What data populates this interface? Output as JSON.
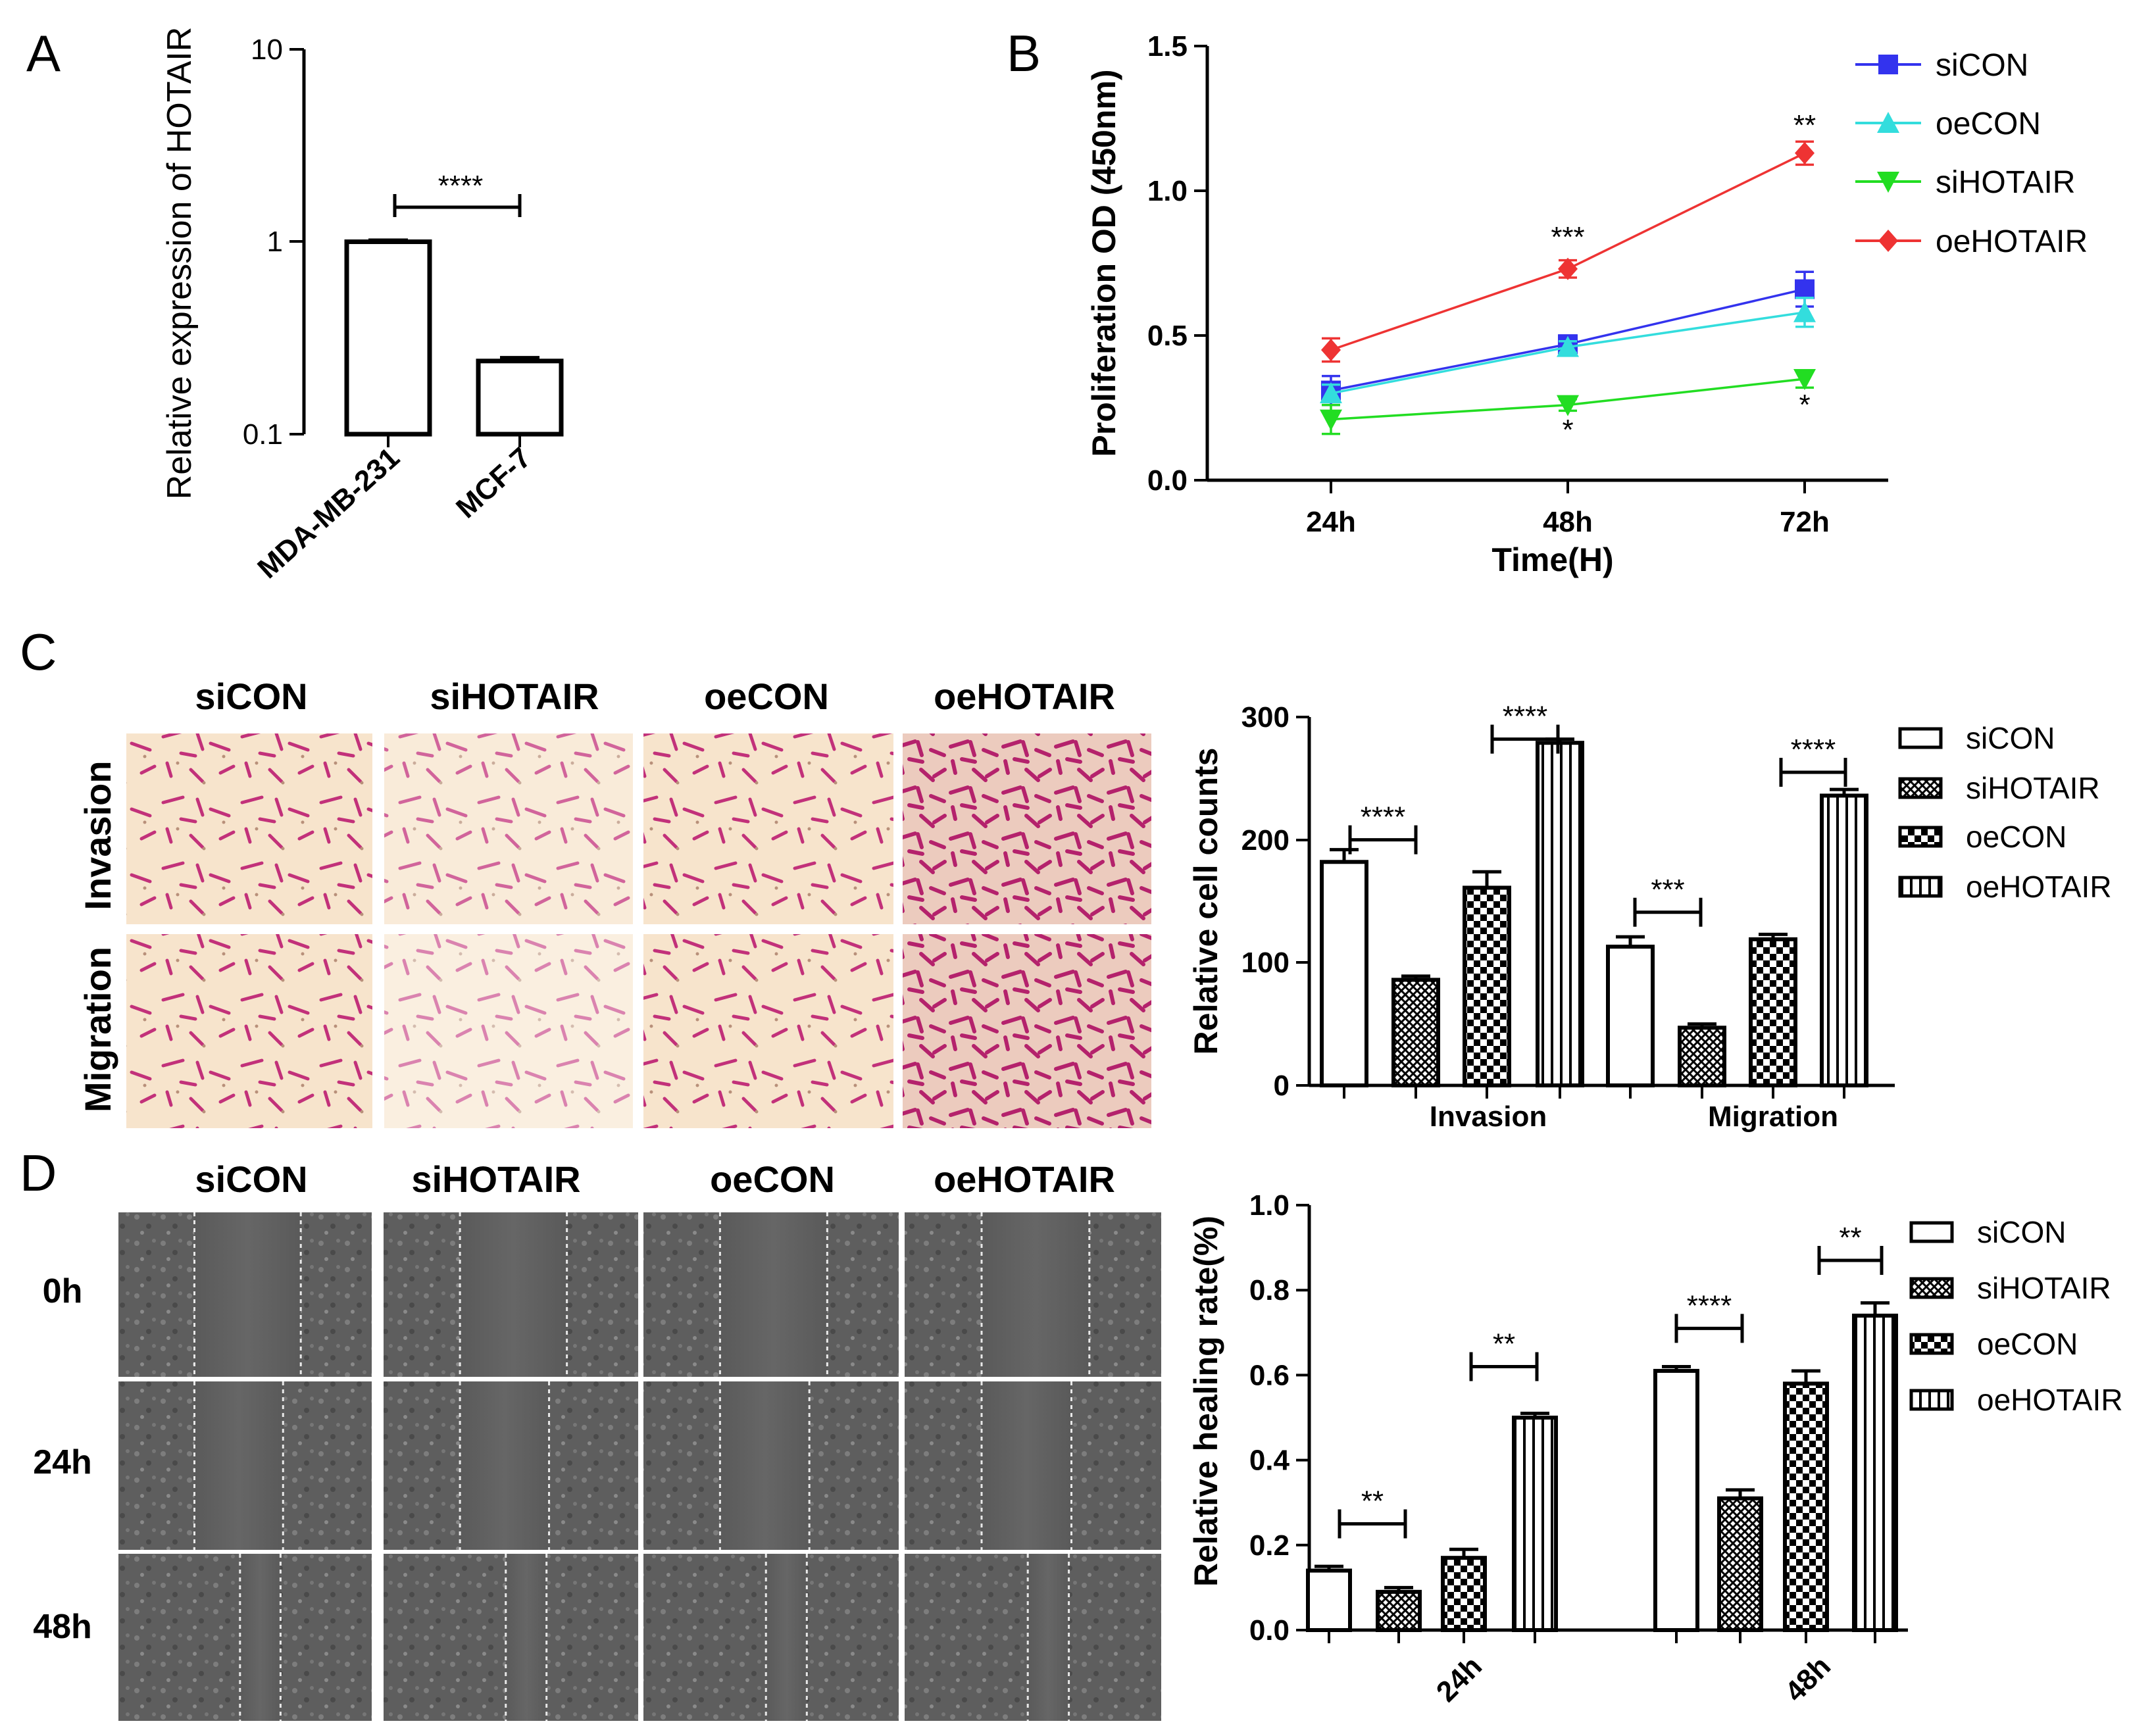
{
  "panels": {
    "A": {
      "letter": "A",
      "ylabel": "Relative expression of HOTAIR",
      "yticks": [
        "10",
        "1",
        "0.1"
      ],
      "significance": "****"
    },
    "B": {
      "letter": "B",
      "ylabel": "Proliferation OD (450nm)",
      "xlabel": "Time(H)",
      "yticks": [
        "1.5",
        "1.0",
        "0.5",
        "0.0"
      ],
      "stars": {
        "oe_72": "**",
        "oe_48": "***",
        "si_48": "*",
        "si_72": "*"
      }
    },
    "C": {
      "letter": "C",
      "col_headers": [
        "siCON",
        "siHOTAIR",
        "oeCON",
        "oeHOTAIR"
      ],
      "row_labels": [
        "Invasion",
        "Migration"
      ],
      "ylabel": "Relative cell counts",
      "yticks": [
        "300",
        "200",
        "100",
        "0"
      ],
      "legend": [
        "siCON",
        "siHOTAIR",
        "oeCON",
        "oeHOTAIR"
      ],
      "sig": [
        "****",
        "****",
        "***",
        "****"
      ]
    },
    "D": {
      "letter": "D",
      "col_headers": [
        "siCON",
        "siHOTAIR",
        "oeCON",
        "oeHOTAIR"
      ],
      "row_labels": [
        "0h",
        "24h",
        "48h"
      ],
      "ylabel": "Relative healing rate(%)",
      "yticks": [
        "1.0",
        "0.8",
        "0.6",
        "0.4",
        "0.2",
        "0.0"
      ],
      "legend": [
        "siCON",
        "siHOTAIR",
        "oeCON",
        "oeHOTAIR"
      ],
      "sig": [
        "**",
        "**",
        "****",
        "**"
      ]
    }
  },
  "chart_data": [
    {
      "panel": "A",
      "type": "bar",
      "categories": [
        "MDA-MB-231",
        "MCF-7"
      ],
      "values": [
        1.0,
        0.24
      ],
      "errors": [
        0.02,
        0.01
      ],
      "ylabel": "Relative expression of HOTAIR",
      "yscale": "log",
      "ylim": [
        0.1,
        10
      ]
    },
    {
      "panel": "B",
      "type": "line",
      "x": [
        "24h",
        "48h",
        "72h"
      ],
      "xlabel": "Time(H)",
      "ylabel": "Proliferation OD (450nm)",
      "ylim": [
        0.0,
        1.5
      ],
      "series": [
        {
          "name": "siCON",
          "values": [
            0.31,
            0.47,
            0.66
          ],
          "errors": [
            0.05,
            0.03,
            0.06
          ],
          "color": "#3333ee",
          "marker": "square"
        },
        {
          "name": "oeCON",
          "values": [
            0.3,
            0.46,
            0.58
          ],
          "errors": [
            0.03,
            0.02,
            0.05
          ],
          "color": "#33dddd",
          "marker": "triangle-up"
        },
        {
          "name": "siHOTAIR",
          "values": [
            0.21,
            0.26,
            0.35
          ],
          "errors": [
            0.05,
            0.02,
            0.03
          ],
          "color": "#22dd22",
          "marker": "triangle-down"
        },
        {
          "name": "oeHOTAIR",
          "values": [
            0.45,
            0.73,
            1.13
          ],
          "errors": [
            0.04,
            0.03,
            0.04
          ],
          "color": "#ee3333",
          "marker": "diamond"
        }
      ]
    },
    {
      "panel": "C",
      "type": "bar",
      "categories": [
        "Invasion",
        "Migration"
      ],
      "ylabel": "Relative cell counts",
      "ylim": [
        0,
        300
      ],
      "series": [
        {
          "name": "siCON",
          "values": [
            182,
            113
          ],
          "errors": [
            10,
            8
          ],
          "pattern": "empty"
        },
        {
          "name": "siHOTAIR",
          "values": [
            86,
            47
          ],
          "errors": [
            3,
            3
          ],
          "pattern": "dense"
        },
        {
          "name": "oeCON",
          "values": [
            161,
            119
          ],
          "errors": [
            13,
            4
          ],
          "pattern": "checker"
        },
        {
          "name": "oeHOTAIR",
          "values": [
            279,
            236
          ],
          "errors": [
            3,
            5
          ],
          "pattern": "vstripe"
        }
      ]
    },
    {
      "panel": "D",
      "type": "bar",
      "categories": [
        "24h",
        "48h"
      ],
      "ylabel": "Relative healing rate(%)",
      "ylim": [
        0.0,
        1.0
      ],
      "series": [
        {
          "name": "siCON",
          "values": [
            0.14,
            0.61
          ],
          "errors": [
            0.01,
            0.01
          ],
          "pattern": "empty"
        },
        {
          "name": "siHOTAIR",
          "values": [
            0.09,
            0.31
          ],
          "errors": [
            0.01,
            0.02
          ],
          "pattern": "dense"
        },
        {
          "name": "oeCON",
          "values": [
            0.17,
            0.58
          ],
          "errors": [
            0.02,
            0.03
          ],
          "pattern": "checker"
        },
        {
          "name": "oeHOTAIR",
          "values": [
            0.5,
            0.74
          ],
          "errors": [
            0.01,
            0.03
          ],
          "pattern": "vstripe"
        }
      ]
    }
  ]
}
